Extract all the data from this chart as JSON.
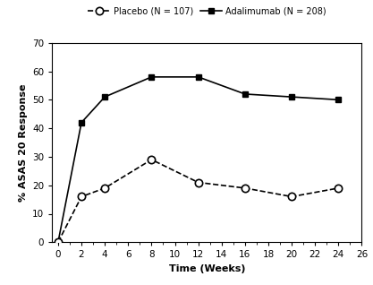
{
  "placebo_x": [
    0,
    2,
    4,
    8,
    12,
    16,
    20,
    24
  ],
  "placebo_y": [
    0,
    16,
    19,
    29,
    21,
    19,
    16,
    19
  ],
  "adalimumab_x": [
    0,
    2,
    4,
    8,
    12,
    16,
    20,
    24
  ],
  "adalimumab_y": [
    0,
    42,
    51,
    58,
    58,
    52,
    51,
    50
  ],
  "xlabel": "Time (Weeks)",
  "ylabel": "% ASAS 20 Response",
  "xlim": [
    -0.5,
    26
  ],
  "ylim": [
    0,
    70
  ],
  "xticks": [
    0,
    2,
    4,
    6,
    8,
    10,
    12,
    14,
    16,
    18,
    20,
    22,
    24,
    26
  ],
  "yticks": [
    0,
    10,
    20,
    30,
    40,
    50,
    60,
    70
  ],
  "placebo_label": "Placebo (N = 107)",
  "adalimumab_label": "Adalimumab (N = 208)",
  "line_color": "#000000",
  "bg_color": "#ffffff",
  "figsize": [
    4.17,
    3.18
  ],
  "dpi": 100
}
